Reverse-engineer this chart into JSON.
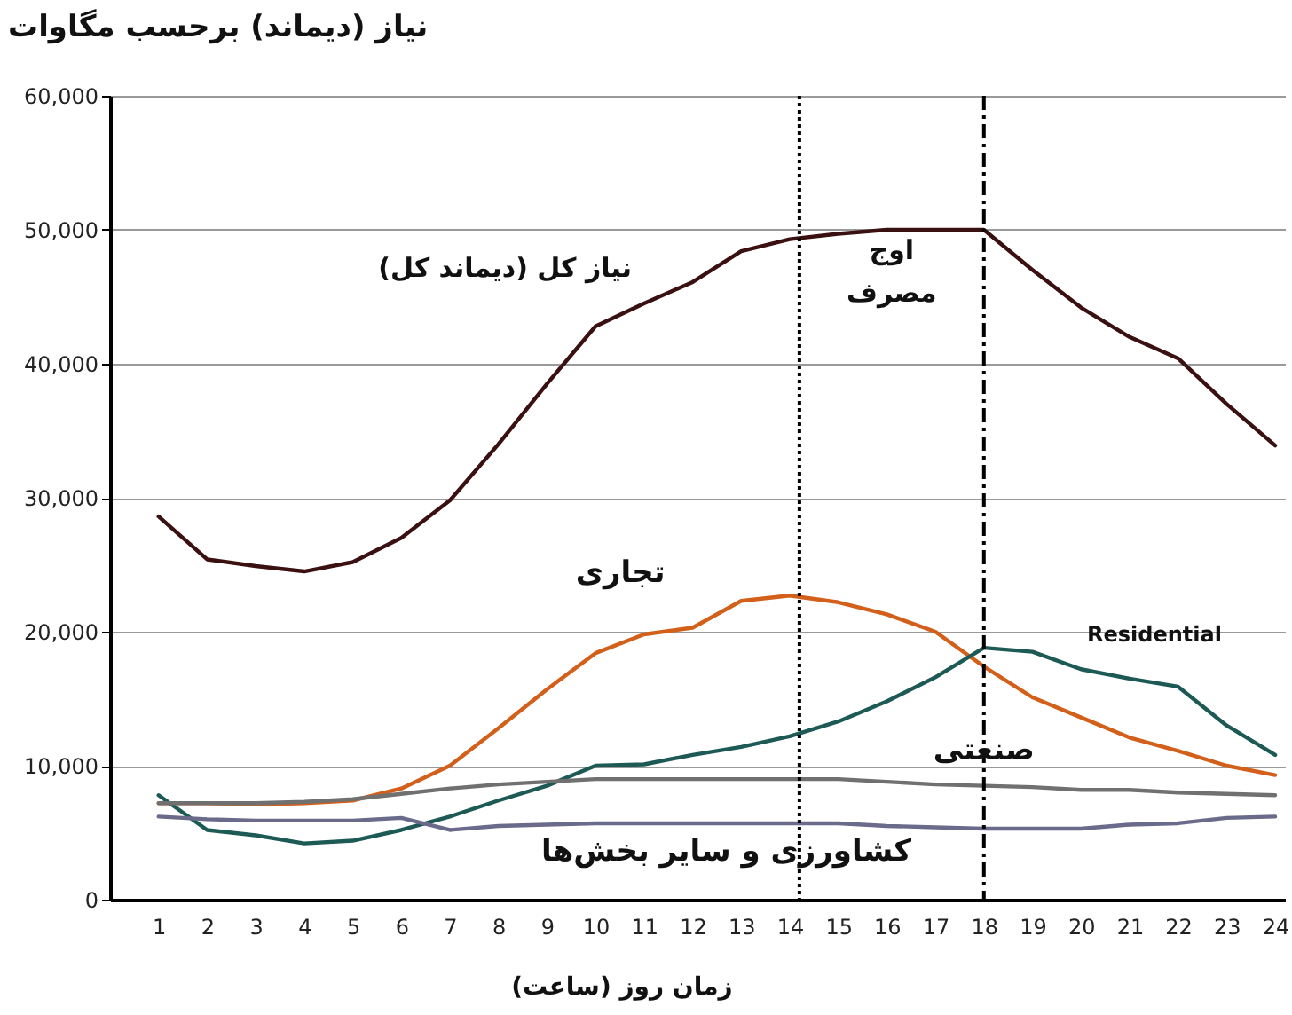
{
  "chart_data": {
    "type": "line",
    "ylabel": "نیاز (دیماند) برحسب مگاوات",
    "xlabel": "زمان روز (ساعت)",
    "x": [
      1,
      2,
      3,
      4,
      5,
      6,
      7,
      8,
      9,
      10,
      11,
      12,
      13,
      14,
      15,
      16,
      17,
      18,
      19,
      20,
      21,
      22,
      23,
      24
    ],
    "xlim": [
      0,
      24.2
    ],
    "xticks": [
      1,
      2,
      3,
      4,
      5,
      6,
      7,
      8,
      9,
      10,
      11,
      12,
      13,
      14,
      15,
      16,
      17,
      18,
      19,
      20,
      21,
      22,
      23,
      24
    ],
    "ylim": [
      0,
      60000
    ],
    "yticks": [
      0,
      {
        "value": 10000,
        "label": "10,000"
      },
      {
        "value": 20000,
        "label": "20,000"
      },
      {
        "value": 30000,
        "label": "30,000"
      },
      {
        "value": 40000,
        "label": "40,000"
      },
      {
        "value": 50000,
        "label": "50,000"
      },
      {
        "value": 60000,
        "label": "60,000"
      }
    ],
    "grid": "y",
    "legend": false,
    "marker": "none",
    "line_style": "solid",
    "series": [
      {
        "name": "نیاز کل (دیماند کل)",
        "color": "#3a1010",
        "values": [
          28600,
          25400,
          24900,
          24500,
          25200,
          27000,
          29800,
          34000,
          38500,
          42800,
          44500,
          46100,
          48400,
          49300,
          49700,
          50000,
          50000,
          50000,
          47000,
          44200,
          42000,
          40400,
          37000,
          33900
        ]
      },
      {
        "name": "تجاری",
        "color": "#d2601a",
        "values": [
          7200,
          7200,
          7100,
          7200,
          7400,
          8300,
          10000,
          12800,
          15700,
          18400,
          19800,
          20300,
          22300,
          22700,
          22200,
          21300,
          20000,
          17400,
          15100,
          13600,
          12100,
          11100,
          10000,
          9300
        ]
      },
      {
        "name": "Residential",
        "color": "#1d5a55",
        "values": [
          7800,
          5200,
          4800,
          4200,
          4400,
          5200,
          6200,
          7400,
          8500,
          10000,
          10100,
          10800,
          11400,
          12200,
          13300,
          14800,
          16600,
          18800,
          18500,
          17200,
          16500,
          15900,
          13000,
          10800
        ]
      },
      {
        "name": "صنعتی",
        "color": "#707070",
        "values": [
          7200,
          7200,
          7200,
          7300,
          7500,
          7900,
          8300,
          8600,
          8800,
          9000,
          9000,
          9000,
          9000,
          9000,
          9000,
          8800,
          8600,
          8500,
          8400,
          8200,
          8200,
          8000,
          7900,
          7800
        ]
      },
      {
        "name": "کشاورزی و سایر بخش‌ها",
        "color": "#6a6a8a",
        "values": [
          6200,
          6000,
          5900,
          5900,
          5900,
          6100,
          5200,
          5500,
          5600,
          5700,
          5700,
          5700,
          5700,
          5700,
          5700,
          5500,
          5400,
          5300,
          5300,
          5300,
          5600,
          5700,
          6100,
          6200
        ]
      }
    ],
    "ref_lines": [
      {
        "axis": "x",
        "value": 14.2,
        "line_style": "dotted",
        "color": "#000000"
      },
      {
        "axis": "x",
        "value": 18,
        "line_style": "dashed",
        "color": "#000000"
      }
    ],
    "annotations": [
      "اوج مصرف"
    ]
  }
}
